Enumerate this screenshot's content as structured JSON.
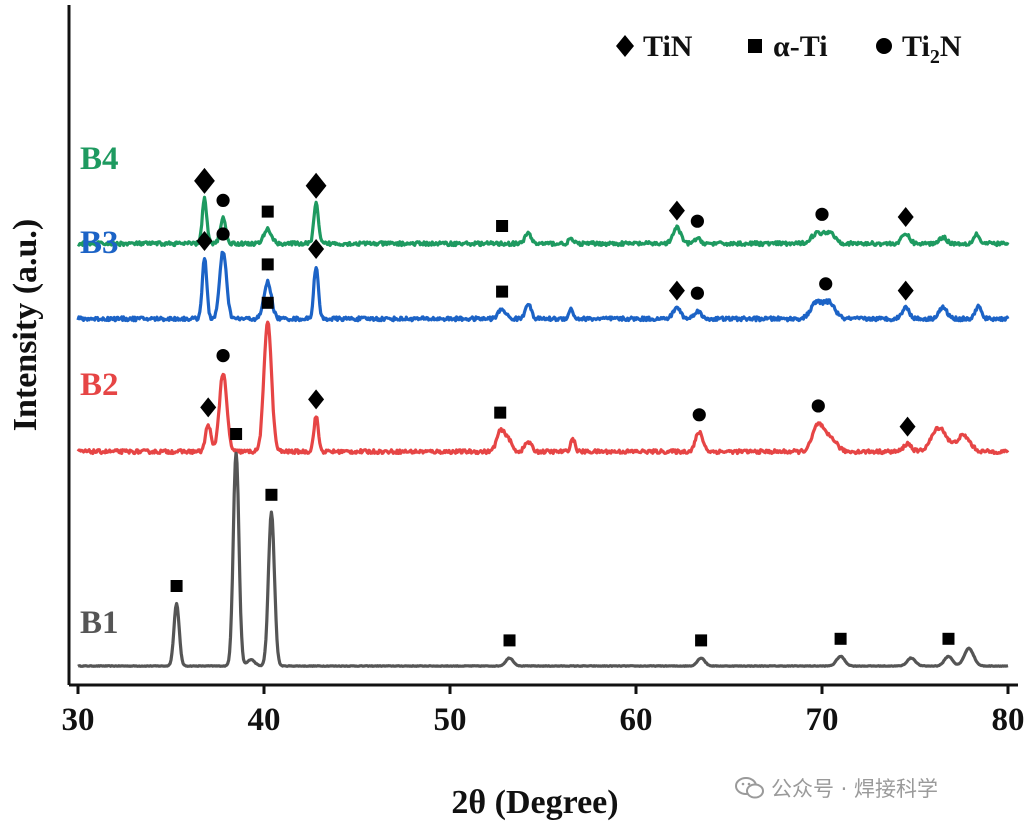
{
  "chart_data": {
    "type": "line",
    "xlabel": "2θ (Degree)",
    "ylabel": "Intensity (a.u.)",
    "xlim": [
      30,
      80
    ],
    "x_ticks": [
      "30",
      "40",
      "50",
      "60",
      "70",
      "80"
    ],
    "grid": false,
    "legend": {
      "placement": "top-right",
      "entries": [
        {
          "marker": "diamond",
          "label": "TiN"
        },
        {
          "marker": "square",
          "label": "α-Ti"
        },
        {
          "marker": "circle",
          "label": "Ti",
          "sub": "2",
          "suffix": "N"
        }
      ]
    },
    "series": [
      {
        "name": "B1",
        "color": "#555555",
        "baseline": 0.0,
        "noise": 0.002,
        "peaks": [
          [
            35.3,
            0.39,
            0.14
          ],
          [
            38.5,
            1.34,
            0.15
          ],
          [
            39.3,
            0.04,
            0.2
          ],
          [
            40.4,
            0.96,
            0.16
          ],
          [
            53.2,
            0.05,
            0.2
          ],
          [
            63.5,
            0.05,
            0.2
          ],
          [
            71.0,
            0.06,
            0.22
          ],
          [
            74.8,
            0.05,
            0.22
          ],
          [
            76.8,
            0.06,
            0.22
          ],
          [
            77.9,
            0.11,
            0.25
          ]
        ],
        "markers": [
          [
            "square",
            35.3
          ],
          [
            "square",
            38.5
          ],
          [
            "square",
            40.4
          ],
          [
            "square",
            53.2
          ],
          [
            "square",
            63.5
          ],
          [
            "square",
            71.0
          ],
          [
            "square",
            76.8
          ]
        ]
      },
      {
        "name": "B2",
        "color": "#e64545",
        "baseline": 1.34,
        "noise": 0.012,
        "peaks": [
          [
            37.0,
            0.17,
            0.14
          ],
          [
            37.8,
            0.49,
            0.2
          ],
          [
            40.2,
            0.82,
            0.2
          ],
          [
            42.8,
            0.22,
            0.12
          ],
          [
            52.7,
            0.12,
            0.2
          ],
          [
            53.1,
            0.08,
            0.2
          ],
          [
            54.2,
            0.06,
            0.18
          ],
          [
            56.6,
            0.08,
            0.12
          ],
          [
            63.4,
            0.12,
            0.2
          ],
          [
            69.8,
            0.17,
            0.3
          ],
          [
            70.5,
            0.08,
            0.3
          ],
          [
            74.6,
            0.05,
            0.2
          ],
          [
            76.3,
            0.15,
            0.4
          ],
          [
            77.6,
            0.1,
            0.35
          ]
        ],
        "markers": [
          [
            "diamond",
            37.0
          ],
          [
            "circle",
            37.8
          ],
          [
            "square",
            40.2
          ],
          [
            "diamond",
            42.8
          ],
          [
            "square",
            52.7
          ],
          [
            "circle",
            63.4
          ],
          [
            "circle",
            69.8
          ],
          [
            "diamond",
            74.6
          ]
        ]
      },
      {
        "name": "B3",
        "color": "#1c63c6",
        "baseline": 2.17,
        "noise": 0.012,
        "peaks": [
          [
            36.8,
            0.38,
            0.12
          ],
          [
            37.8,
            0.42,
            0.18
          ],
          [
            40.2,
            0.23,
            0.2
          ],
          [
            42.8,
            0.33,
            0.12
          ],
          [
            52.8,
            0.06,
            0.2
          ],
          [
            54.2,
            0.1,
            0.15
          ],
          [
            56.5,
            0.06,
            0.12
          ],
          [
            62.2,
            0.07,
            0.2
          ],
          [
            63.3,
            0.05,
            0.18
          ],
          [
            69.7,
            0.1,
            0.3
          ],
          [
            70.4,
            0.1,
            0.3
          ],
          [
            74.5,
            0.07,
            0.2
          ],
          [
            76.5,
            0.07,
            0.22
          ],
          [
            78.4,
            0.08,
            0.15
          ]
        ],
        "markers": [
          [
            "diamond",
            36.8
          ],
          [
            "circle",
            37.8
          ],
          [
            "square",
            40.2
          ],
          [
            "diamond",
            42.8
          ],
          [
            "square",
            52.8
          ],
          [
            "diamond",
            62.2
          ],
          [
            "circle",
            63.3
          ],
          [
            "circle",
            70.2
          ],
          [
            "diamond",
            74.5
          ]
        ]
      },
      {
        "name": "B4",
        "color": "#1e9a60",
        "baseline": 2.64,
        "noise": 0.012,
        "peaks": [
          [
            36.8,
            0.28,
            0.12
          ],
          [
            37.8,
            0.16,
            0.15
          ],
          [
            40.2,
            0.09,
            0.2
          ],
          [
            42.8,
            0.25,
            0.12
          ],
          [
            54.2,
            0.07,
            0.15
          ],
          [
            56.5,
            0.03,
            0.12
          ],
          [
            62.2,
            0.1,
            0.2
          ],
          [
            63.3,
            0.03,
            0.18
          ],
          [
            69.7,
            0.06,
            0.3
          ],
          [
            70.4,
            0.07,
            0.3
          ],
          [
            74.5,
            0.06,
            0.2
          ],
          [
            76.5,
            0.04,
            0.2
          ],
          [
            78.3,
            0.06,
            0.15
          ]
        ],
        "markers": [
          [
            "diamond",
            36.8
          ],
          [
            "circle",
            37.8
          ],
          [
            "square",
            40.2
          ],
          [
            "diamond",
            42.8
          ],
          [
            "square",
            52.8
          ],
          [
            "diamond",
            62.2
          ],
          [
            "circle",
            63.3
          ],
          [
            "circle",
            70.0
          ],
          [
            "diamond",
            74.5
          ]
        ]
      }
    ]
  },
  "watermark": {
    "text": "公众号 · 焊接科学",
    "icon": "wechat-icon"
  }
}
